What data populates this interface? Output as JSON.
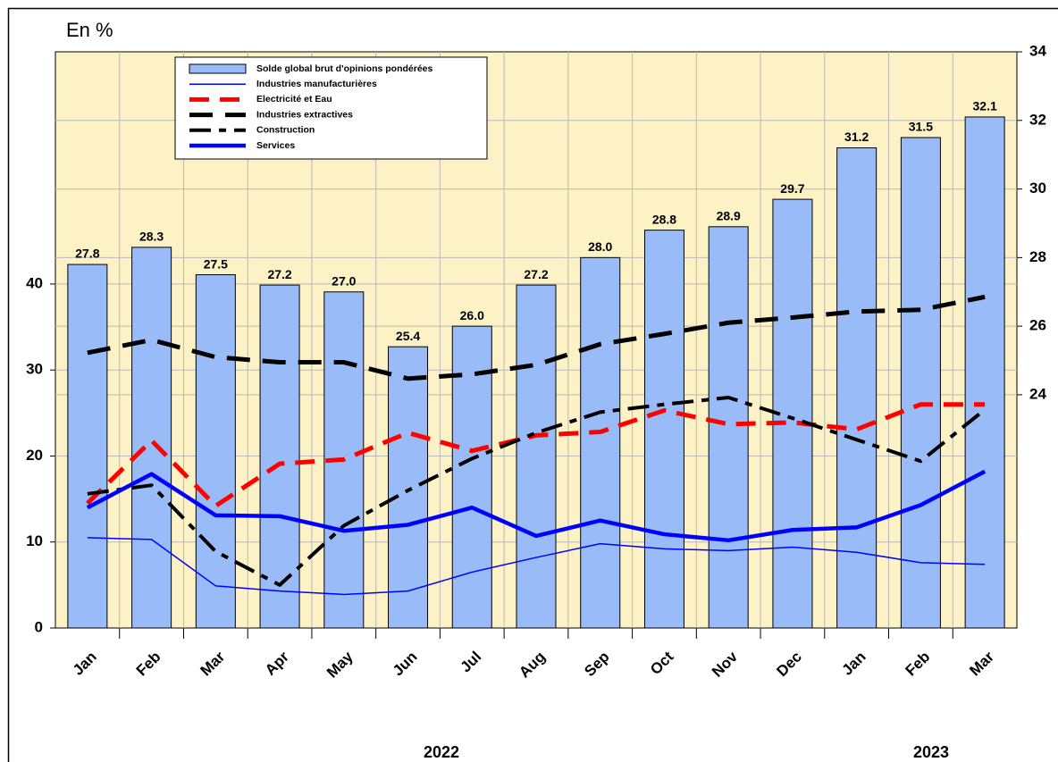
{
  "chart_data": {
    "type": "bar",
    "unit_label": "En %",
    "categories": [
      "Jan",
      "Feb",
      "Mar",
      "Apr",
      "May",
      "Jun",
      "Jul",
      "Aug",
      "Sep",
      "Oct",
      "Nov",
      "Dec",
      "Jan",
      "Feb",
      "Mar"
    ],
    "year_labels": [
      "2022",
      "2023"
    ],
    "ylim": [
      0,
      67
    ],
    "yticks": [
      0,
      10,
      20,
      30,
      40
    ],
    "y2lim": [
      17.2,
      34
    ],
    "y2ticks": [
      24,
      26,
      28,
      30,
      32,
      34
    ],
    "grid": true,
    "legend": "top-left",
    "series": [
      {
        "name": "Solde global brut d'opinions pondérées",
        "kind": "bar",
        "axis": "y2",
        "color": "#99bbf7",
        "values": [
          27.8,
          28.3,
          27.5,
          27.2,
          27.0,
          25.4,
          26.0,
          27.2,
          28.0,
          28.8,
          28.9,
          29.7,
          31.2,
          31.5,
          32.1
        ],
        "value_labels": [
          "27.8",
          "28.3",
          "27.5",
          "27.2",
          "27.0",
          "25.4",
          "26.0",
          "27.2",
          "28.0",
          "28.8",
          "28.9",
          "29.7",
          "31.2",
          "31.5",
          "32.1"
        ]
      },
      {
        "name": "Industries manufacturières",
        "kind": "line",
        "color": "#0000ff",
        "line_style": "thin",
        "values": [
          10.5,
          10.3,
          4.9,
          4.3,
          3.9,
          4.3,
          6.5,
          8.2,
          9.8,
          9.2,
          9.0,
          9.4,
          8.8,
          7.6,
          7.4
        ]
      },
      {
        "name": "Electricité et Eau",
        "kind": "line",
        "color": "#ff0000",
        "line_style": "dashed",
        "values": [
          14.5,
          21.8,
          14.2,
          19.1,
          19.6,
          22.7,
          20.6,
          22.4,
          22.8,
          25.3,
          23.7,
          23.9,
          23.1,
          26.0,
          26.0
        ]
      },
      {
        "name": "Industries extractives",
        "kind": "line",
        "color": "#000000",
        "line_style": "long-dashed",
        "values": [
          32.0,
          33.5,
          31.5,
          30.9,
          30.9,
          29.0,
          29.5,
          30.6,
          33.0,
          34.2,
          35.5,
          36.1,
          36.8,
          37.0,
          38.5
        ]
      },
      {
        "name": "Construction",
        "kind": "line",
        "color": "#000000",
        "line_style": "dash-dot",
        "values": [
          15.6,
          16.6,
          8.9,
          5.0,
          11.9,
          16.0,
          19.7,
          22.7,
          25.1,
          26.0,
          26.8,
          24.4,
          21.9,
          19.4,
          25.4
        ]
      },
      {
        "name": "Services",
        "kind": "line",
        "color": "#0000ff",
        "line_style": "thick",
        "values": [
          14.0,
          17.9,
          13.1,
          13.0,
          11.3,
          12.0,
          14.0,
          10.7,
          12.5,
          10.9,
          10.2,
          11.4,
          11.7,
          14.3,
          18.2
        ]
      }
    ]
  }
}
